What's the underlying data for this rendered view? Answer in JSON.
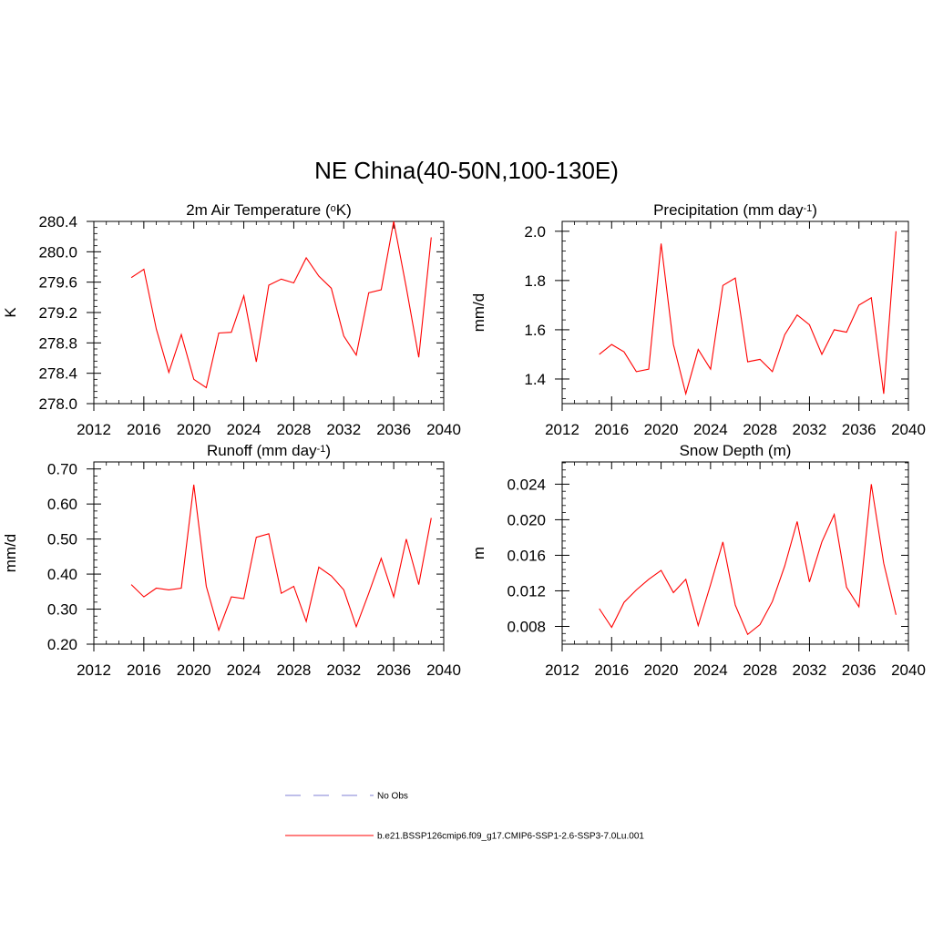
{
  "figure": {
    "title": "NE China(40-50N,100-130E)"
  },
  "legend": {
    "obs_label": "No Obs",
    "obs_color": "#9999dd",
    "model_label": "b.e21.BSSP126cmip6.f09_g17.CMIP6-SSP1-2.6-SSP3-7.0Lu.001",
    "model_color": "#ff0000"
  },
  "chart_data": [
    {
      "type": "line",
      "title": "2m Air Temperature (oK)",
      "title_parts": [
        "2m Air Temperature (",
        "o",
        "K)"
      ],
      "ylabel": "K",
      "xlim": [
        2012,
        2040
      ],
      "ylim": [
        278.0,
        280.4
      ],
      "xticks": [
        2012,
        2016,
        2020,
        2024,
        2028,
        2032,
        2036,
        2040
      ],
      "xtick_labels": [
        "2012",
        "2016",
        "2020",
        "2024",
        "2028",
        "2032",
        "2036",
        "2040"
      ],
      "yticks": [
        278.0,
        278.4,
        278.8,
        279.2,
        279.6,
        280.0,
        280.4
      ],
      "ytick_labels": [
        "278.0",
        "278.4",
        "278.8",
        "279.2",
        "279.6",
        "280.0",
        "280.4"
      ],
      "x": [
        2015,
        2016,
        2017,
        2018,
        2019,
        2020,
        2021,
        2022,
        2023,
        2024,
        2025,
        2026,
        2027,
        2028,
        2029,
        2030,
        2031,
        2032,
        2033,
        2034,
        2035,
        2036,
        2037,
        2038,
        2039
      ],
      "series": [
        {
          "color": "#ff0000",
          "values": [
            279.66,
            279.77,
            278.98,
            278.41,
            278.91,
            278.32,
            278.21,
            278.93,
            278.94,
            279.42,
            278.55,
            279.56,
            279.64,
            279.59,
            279.92,
            279.68,
            279.52,
            278.89,
            278.64,
            279.46,
            279.5,
            280.4,
            279.53,
            278.61,
            280.19
          ]
        }
      ]
    },
    {
      "type": "line",
      "title": "Precipitation (mm day-1)",
      "title_parts": [
        "Precipitation (mm day",
        "-1",
        ")"
      ],
      "ylabel": "mm/d",
      "xlim": [
        2012,
        2040
      ],
      "ylim": [
        1.3,
        2.04
      ],
      "xticks": [
        2012,
        2016,
        2020,
        2024,
        2028,
        2032,
        2036,
        2040
      ],
      "xtick_labels": [
        "2012",
        "2016",
        "2020",
        "2024",
        "2028",
        "2032",
        "2036",
        "2040"
      ],
      "yticks": [
        1.4,
        1.6,
        1.8,
        2.0
      ],
      "ytick_labels": [
        "1.4",
        "1.6",
        "1.8",
        "2.0"
      ],
      "x": [
        2015,
        2016,
        2017,
        2018,
        2019,
        2020,
        2021,
        2022,
        2023,
        2024,
        2025,
        2026,
        2027,
        2028,
        2029,
        2030,
        2031,
        2032,
        2033,
        2034,
        2035,
        2036,
        2037,
        2038,
        2039
      ],
      "series": [
        {
          "color": "#ff0000",
          "values": [
            1.5,
            1.54,
            1.51,
            1.43,
            1.44,
            1.95,
            1.54,
            1.34,
            1.52,
            1.44,
            1.78,
            1.81,
            1.47,
            1.48,
            1.43,
            1.58,
            1.66,
            1.62,
            1.5,
            1.6,
            1.59,
            1.7,
            1.73,
            1.34,
            2.0
          ]
        }
      ]
    },
    {
      "type": "line",
      "title": "Runoff (mm day-1)",
      "title_parts": [
        "Runoff (mm day",
        "-1",
        ")"
      ],
      "ylabel": "mm/d",
      "xlim": [
        2012,
        2040
      ],
      "ylim": [
        0.2,
        0.72
      ],
      "xticks": [
        2012,
        2016,
        2020,
        2024,
        2028,
        2032,
        2036,
        2040
      ],
      "xtick_labels": [
        "2012",
        "2016",
        "2020",
        "2024",
        "2028",
        "2032",
        "2036",
        "2040"
      ],
      "yticks": [
        0.2,
        0.3,
        0.4,
        0.5,
        0.6,
        0.7
      ],
      "ytick_labels": [
        "0.20",
        "0.30",
        "0.40",
        "0.50",
        "0.60",
        "0.70"
      ],
      "x": [
        2015,
        2016,
        2017,
        2018,
        2019,
        2020,
        2021,
        2022,
        2023,
        2024,
        2025,
        2026,
        2027,
        2028,
        2029,
        2030,
        2031,
        2032,
        2033,
        2034,
        2035,
        2036,
        2037,
        2038,
        2039
      ],
      "series": [
        {
          "color": "#ff0000",
          "values": [
            0.37,
            0.335,
            0.36,
            0.355,
            0.36,
            0.655,
            0.365,
            0.24,
            0.335,
            0.33,
            0.505,
            0.515,
            0.345,
            0.365,
            0.265,
            0.42,
            0.395,
            0.355,
            0.25,
            0.345,
            0.445,
            0.335,
            0.5,
            0.37,
            0.56
          ]
        }
      ]
    },
    {
      "type": "line",
      "title": "Snow Depth (m)",
      "title_parts": [
        "Snow Depth (m)"
      ],
      "ylabel": "m",
      "xlim": [
        2012,
        2040
      ],
      "ylim": [
        0.006,
        0.0265
      ],
      "xticks": [
        2012,
        2016,
        2020,
        2024,
        2028,
        2032,
        2036,
        2040
      ],
      "xtick_labels": [
        "2012",
        "2016",
        "2020",
        "2024",
        "2028",
        "2032",
        "2036",
        "2040"
      ],
      "yticks": [
        0.008,
        0.012,
        0.016,
        0.02,
        0.024
      ],
      "ytick_labels": [
        "0.008",
        "0.012",
        "0.016",
        "0.020",
        "0.024"
      ],
      "x": [
        2015,
        2016,
        2017,
        2018,
        2019,
        2020,
        2021,
        2022,
        2023,
        2024,
        2025,
        2026,
        2027,
        2028,
        2029,
        2030,
        2031,
        2032,
        2033,
        2034,
        2035,
        2036,
        2037,
        2038,
        2039
      ],
      "series": [
        {
          "color": "#ff0000",
          "values": [
            0.01,
            0.0079,
            0.0107,
            0.0121,
            0.0133,
            0.0143,
            0.0118,
            0.0133,
            0.0081,
            0.0127,
            0.0175,
            0.0104,
            0.0071,
            0.0082,
            0.0108,
            0.0148,
            0.0198,
            0.013,
            0.0175,
            0.0206,
            0.0124,
            0.0102,
            0.024,
            0.0151,
            0.0093
          ]
        }
      ]
    }
  ]
}
